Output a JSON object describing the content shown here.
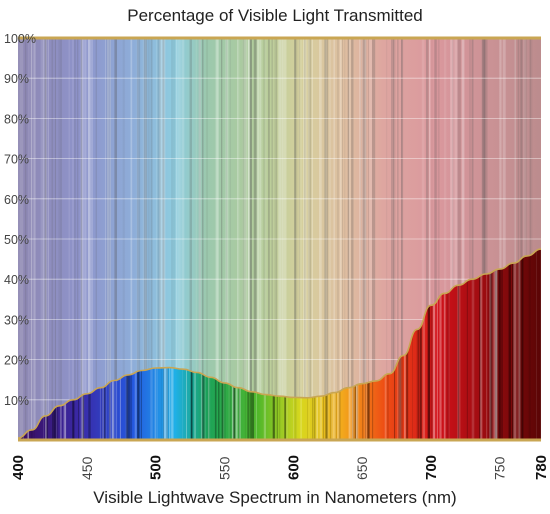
{
  "chart_data": {
    "type": "area",
    "title": "Percentage of Visible Light Transmitted",
    "xlabel": "Visible Lightwave Spectrum in Nanometers (nm)",
    "ylabel": "",
    "xlim": [
      400,
      780
    ],
    "ylim": [
      0,
      100
    ],
    "grid": true,
    "legend": "none",
    "y_ticks": [
      "10%",
      "20%",
      "30%",
      "40%",
      "50%",
      "60%",
      "70%",
      "80%",
      "90%",
      "100%"
    ],
    "x_ticks": [
      {
        "value": 400,
        "label": "400",
        "bold": true
      },
      {
        "value": 450,
        "label": "450",
        "bold": false
      },
      {
        "value": 500,
        "label": "500",
        "bold": true
      },
      {
        "value": 550,
        "label": "550",
        "bold": false
      },
      {
        "value": 600,
        "label": "600",
        "bold": true
      },
      {
        "value": 650,
        "label": "650",
        "bold": false
      },
      {
        "value": 700,
        "label": "700",
        "bold": true
      },
      {
        "value": 750,
        "label": "750",
        "bold": false
      },
      {
        "value": 780,
        "label": "780",
        "bold": true
      }
    ],
    "series": [
      {
        "x": [
          400,
          410,
          420,
          430,
          440,
          450,
          460,
          470,
          480,
          490,
          500,
          510,
          520,
          530,
          540,
          550,
          560,
          570,
          580,
          590,
          600,
          610,
          620,
          630,
          640,
          650,
          660,
          670,
          680,
          690,
          700,
          710,
          720,
          730,
          740,
          750,
          760,
          770,
          780
        ],
        "values": [
          0.5,
          2.5,
          6.0,
          8.5,
          10.0,
          11.5,
          13.0,
          14.8,
          16.2,
          17.3,
          17.9,
          18.0,
          17.6,
          16.8,
          15.6,
          14.2,
          13.0,
          12.0,
          11.3,
          10.9,
          10.6,
          10.5,
          10.9,
          11.8,
          13.0,
          14.0,
          14.7,
          16.5,
          21.0,
          27.5,
          33.5,
          36.5,
          38.5,
          40.0,
          41.3,
          42.5,
          44.0,
          45.8,
          47.5
        ]
      }
    ],
    "colors": {
      "frame": "#c9a653",
      "curve": "#c9a653",
      "grid": "#ffffff",
      "background_gray": "#8c8c8c"
    }
  }
}
